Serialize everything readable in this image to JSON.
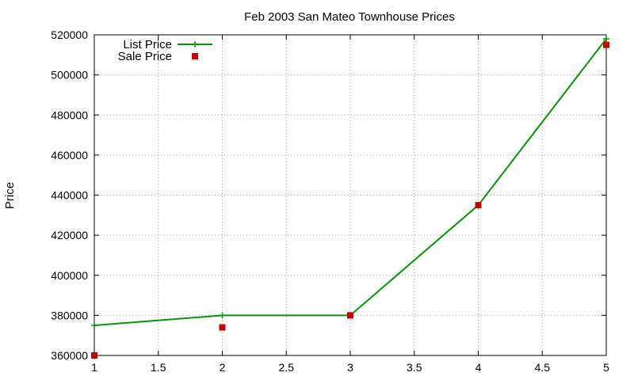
{
  "chart_data": {
    "type": "line",
    "title": "Feb 2003 San Mateo Townhouse Prices",
    "xlabel": "",
    "ylabel": "Price",
    "xlim": [
      1,
      5
    ],
    "ylim": [
      360000,
      520000
    ],
    "x_ticks": [
      "1",
      "1.5",
      "2",
      "2.5",
      "3",
      "3.5",
      "4",
      "4.5",
      "5"
    ],
    "y_ticks": [
      "360000",
      "380000",
      "400000",
      "420000",
      "440000",
      "460000",
      "480000",
      "500000",
      "520000"
    ],
    "grid": true,
    "legend_position": "top-left",
    "series": [
      {
        "name": "List Price",
        "style": "line-with-plus-markers",
        "color": "#009900",
        "x": [
          1,
          2,
          3,
          4,
          5
        ],
        "y": [
          375000,
          380000,
          380000,
          435000,
          518000
        ]
      },
      {
        "name": "Sale Price",
        "style": "square-markers",
        "color": "#cc0000",
        "x": [
          1,
          2,
          3,
          4,
          5
        ],
        "y": [
          360000,
          374000,
          380000,
          435000,
          515000
        ]
      }
    ]
  }
}
